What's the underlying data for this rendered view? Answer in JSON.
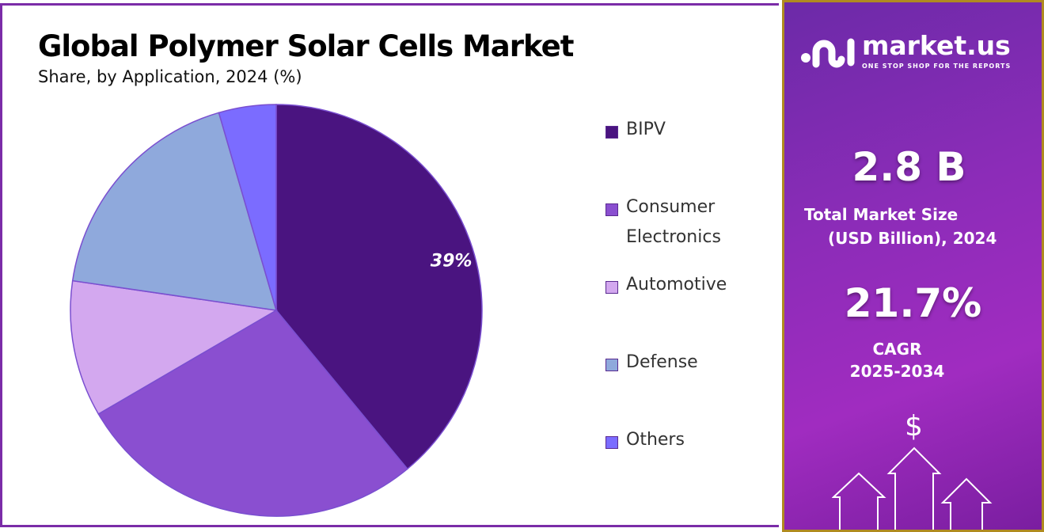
{
  "chart_data": {
    "type": "pie",
    "title": "Global Polymer Solar Cells Market",
    "subtitle": "Share, by Application, 2024 (%)",
    "categories": [
      "BIPV",
      "Consumer Electronics",
      "Automotive",
      "Defense",
      "Others"
    ],
    "values": [
      39,
      27.6,
      10.7,
      18.2,
      4.5
    ],
    "data_labels": [
      "39%",
      "",
      "",
      "",
      ""
    ],
    "colors": [
      "#4a1480",
      "#8a4fd0",
      "#d3a8ef",
      "#8fa9dc",
      "#7b6cff"
    ],
    "legend_position": "right",
    "start_angle": "top, clockwise"
  },
  "legend": {
    "items": [
      {
        "label1": "BIPV",
        "label2": ""
      },
      {
        "label1": "Consumer",
        "label2": "Electronics"
      },
      {
        "label1": "Automotive",
        "label2": ""
      },
      {
        "label1": "Defense",
        "label2": ""
      },
      {
        "label1": "Others",
        "label2": ""
      }
    ]
  },
  "sidebar": {
    "brand": "market.us",
    "tagline": "ONE STOP SHOP FOR THE REPORTS",
    "market_size": "2.8 B",
    "market_size_label1": "Total Market Size",
    "market_size_label2": "(USD Billion), 2024",
    "cagr": "21.7%",
    "cagr_label1": "CAGR",
    "cagr_label2": "2025-2034",
    "dollar": "$"
  }
}
